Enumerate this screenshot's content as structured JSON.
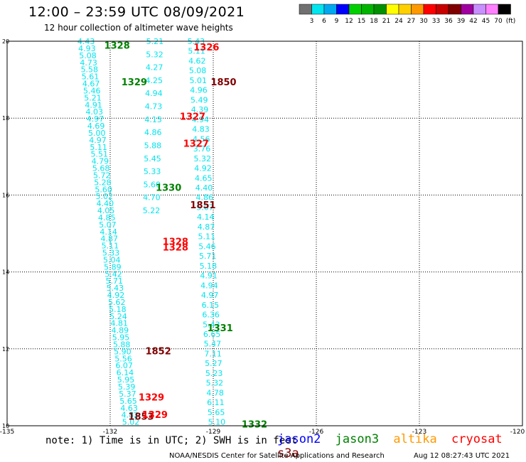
{
  "header": {
    "title": "12:00 – 23:59 UTC 08/09/2021",
    "subtitle": "12 hour collection of altimeter wave heights"
  },
  "legend": {
    "colors": [
      "#707070",
      "#00e5ee",
      "#00a8f0",
      "#0000ff",
      "#00d000",
      "#00b400",
      "#009000",
      "#ffff00",
      "#ffd000",
      "#ff9900",
      "#ff0000",
      "#c80000",
      "#800000",
      "#a000a0",
      "#c890ff",
      "#ff80ff",
      "#000000"
    ],
    "labels": [
      "3",
      "6",
      "9",
      "12",
      "15",
      "18",
      "21",
      "24",
      "27",
      "30",
      "33",
      "36",
      "39",
      "42",
      "45",
      "70",
      "(ft)"
    ]
  },
  "note": "note: 1) Time is in UTC; 2) SWH is in feet",
  "satellites": [
    {
      "name": "jason2",
      "color": "#0000ff"
    },
    {
      "name": "jason3",
      "color": "#008000"
    },
    {
      "name": "altika",
      "color": "#ff9900"
    },
    {
      "name": "cryosat",
      "color": "#ff0000"
    },
    {
      "name": "s3a",
      "color": "#800000"
    }
  ],
  "footer": {
    "credit": "NOAA/NESDIS Center for Satellite Applications and Research",
    "timestamp": "Aug 12 08:27:43 UTC 2021"
  },
  "chart_data": {
    "type": "scatter",
    "xlim": [
      -135,
      -120
    ],
    "ylim": [
      10,
      20
    ],
    "x_ticks": [
      "-135",
      "-132",
      "-129",
      "-126",
      "-123",
      "-120"
    ],
    "y_ticks": [
      "20",
      "18",
      "16",
      "14",
      "12",
      "10"
    ],
    "grid": "dotted",
    "swh_color": "#00e5ee",
    "tracks": [
      {
        "x0": -132.7,
        "y0": 20,
        "x1": -131.4,
        "y1": 10.1,
        "values": [
          "4.43",
          "4.93",
          "5.08",
          "4.73",
          "5.58",
          "5.61",
          "4.67",
          "5.46",
          "5.21",
          "4.91",
          "4.03",
          "4.97",
          "4.69",
          "5.00",
          "4.97",
          "5.11",
          "5.51",
          "4.79",
          "5.68",
          "5.72",
          "5.28",
          "5.60",
          "5.02",
          "4.40",
          "4.05",
          "4.85",
          "5.07",
          "4.14",
          "4.87",
          "5.11",
          "5.33",
          "5.04",
          "5.89",
          "5.42",
          "5.71",
          "5.43",
          "4.92",
          "5.62",
          "5.18",
          "5.24",
          "4.81",
          "4.89",
          "5.95",
          "5.88",
          "5.90",
          "5.56",
          "6.07",
          "6.14",
          "5.95",
          "5.39",
          "5.37",
          "5.65",
          "4.63",
          "4.82",
          "5.02"
        ]
      },
      {
        "x0": -129.5,
        "y0": 20,
        "x1": -128.9,
        "y1": 10.1,
        "values": [
          "5.43",
          "5.11",
          "4.62",
          "5.08",
          "5.01",
          "4.96",
          "5.49",
          "4.39",
          "4.94",
          "4.83",
          "4.56",
          "3.76",
          "5.32",
          "4.92",
          "4.65",
          "4.40",
          "4.86",
          "5.07",
          "4.14",
          "4.87",
          "5.11",
          "5.46",
          "5.71",
          "5.18",
          "4.91",
          "4.94",
          "4.97",
          "6.15",
          "6.36",
          "5.43",
          "6.65",
          "5.47",
          "7.11",
          "5.27",
          "5.23",
          "5.32",
          "4.78",
          "6.11",
          "5.65",
          "5.10"
        ]
      },
      {
        "x0": -130.7,
        "y0": 20,
        "x1": -130.8,
        "y1": 15.6,
        "values": [
          "5.21",
          "5.32",
          "4.27",
          "4.25",
          "4.94",
          "4.73",
          "4.15",
          "4.86",
          "5.88",
          "5.45",
          "5.33",
          "5.60",
          "4.70",
          "5.22"
        ]
      }
    ],
    "passes": [
      {
        "label": "1328",
        "color": "#008000",
        "lon": -131.8,
        "lat": 19.9
      },
      {
        "label": "1326",
        "color": "#ff0000",
        "lon": -129.2,
        "lat": 19.85
      },
      {
        "label": "1329",
        "color": "#008000",
        "lon": -131.3,
        "lat": 18.95
      },
      {
        "label": "1850",
        "color": "#800000",
        "lon": -128.7,
        "lat": 18.95
      },
      {
        "label": "1327",
        "color": "#ff0000",
        "lon": -129.6,
        "lat": 18.05
      },
      {
        "label": "1327",
        "color": "#ff0000",
        "lon": -129.5,
        "lat": 17.35
      },
      {
        "label": "1330",
        "color": "#008000",
        "lon": -130.3,
        "lat": 16.2
      },
      {
        "label": "1851",
        "color": "#800000",
        "lon": -129.3,
        "lat": 15.75
      },
      {
        "label": "1328",
        "color": "#ff0000",
        "lon": -130.1,
        "lat": 14.8
      },
      {
        "label": "1328",
        "color": "#ff0000",
        "lon": -130.1,
        "lat": 14.65
      },
      {
        "label": "1331",
        "color": "#008000",
        "lon": -128.8,
        "lat": 12.55
      },
      {
        "label": "1852",
        "color": "#800000",
        "lon": -130.6,
        "lat": 11.95
      },
      {
        "label": "1329",
        "color": "#ff0000",
        "lon": -130.8,
        "lat": 10.75
      },
      {
        "label": "1853",
        "color": "#800000",
        "lon": -131.1,
        "lat": 10.25
      },
      {
        "label": "1329",
        "color": "#ff0000",
        "lon": -130.7,
        "lat": 10.3
      },
      {
        "label": "1332",
        "color": "#008000",
        "lon": -127.8,
        "lat": 10.05
      }
    ]
  }
}
